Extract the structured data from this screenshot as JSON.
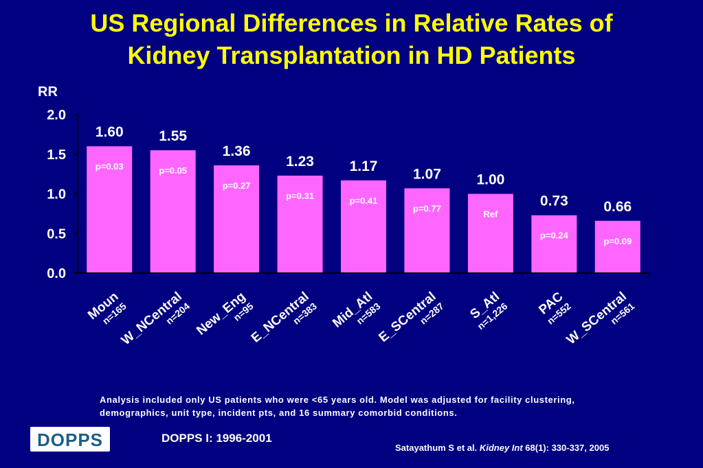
{
  "title": {
    "line1": "US Regional Differences in Relative Rates of",
    "line2": "Kidney Transplantation in HD Patients"
  },
  "chart_data": {
    "type": "bar",
    "ylabel": "RR",
    "ylim": [
      0,
      2.0
    ],
    "yticks": [
      "0.0",
      "0.5",
      "1.0",
      "1.5",
      "2.0"
    ],
    "categories": [
      "Moun",
      "W_NCentral",
      "New_Eng",
      "E_NCentral",
      "Mid_Atl",
      "E_SCentral",
      "S_Atl",
      "PAC",
      "W_SCentral"
    ],
    "n_labels": [
      "n=165",
      "n=204",
      "n=95",
      "n=383",
      "n=583",
      "n=287",
      "n=1,226",
      "n=552",
      "n=561"
    ],
    "values": [
      1.6,
      1.55,
      1.36,
      1.23,
      1.17,
      1.07,
      1.0,
      0.73,
      0.66
    ],
    "value_labels": [
      "1.60",
      "1.55",
      "1.36",
      "1.23",
      "1.17",
      "1.07",
      "1.00",
      "0.73",
      "0.66"
    ],
    "p_labels": [
      "p=0.03",
      "p=0.05",
      "p=0.27",
      "p=0.31",
      "p=0.41",
      "p=0.77",
      "Ref",
      "p=0.24",
      "p=0.09"
    ],
    "bar_color": "#ff66ff",
    "grid": false
  },
  "footnote": {
    "line1": "Analysis included only US patients who were <65 years old.  Model was adjusted for facility clustering,",
    "line2": "demographics, unit type, incident pts, and 16 summary comorbid conditions."
  },
  "logo": {
    "text": "DOPPS"
  },
  "period": "DOPPS I: 1996-2001",
  "citation": {
    "authors": "Satayathum S et al. ",
    "journal": "Kidney Int",
    "ref": " 68(1): 330-337, 2005"
  },
  "colors": {
    "background": "#000080",
    "title": "#ffff00",
    "text": "#ffffff",
    "bar": "#ff66ff"
  }
}
